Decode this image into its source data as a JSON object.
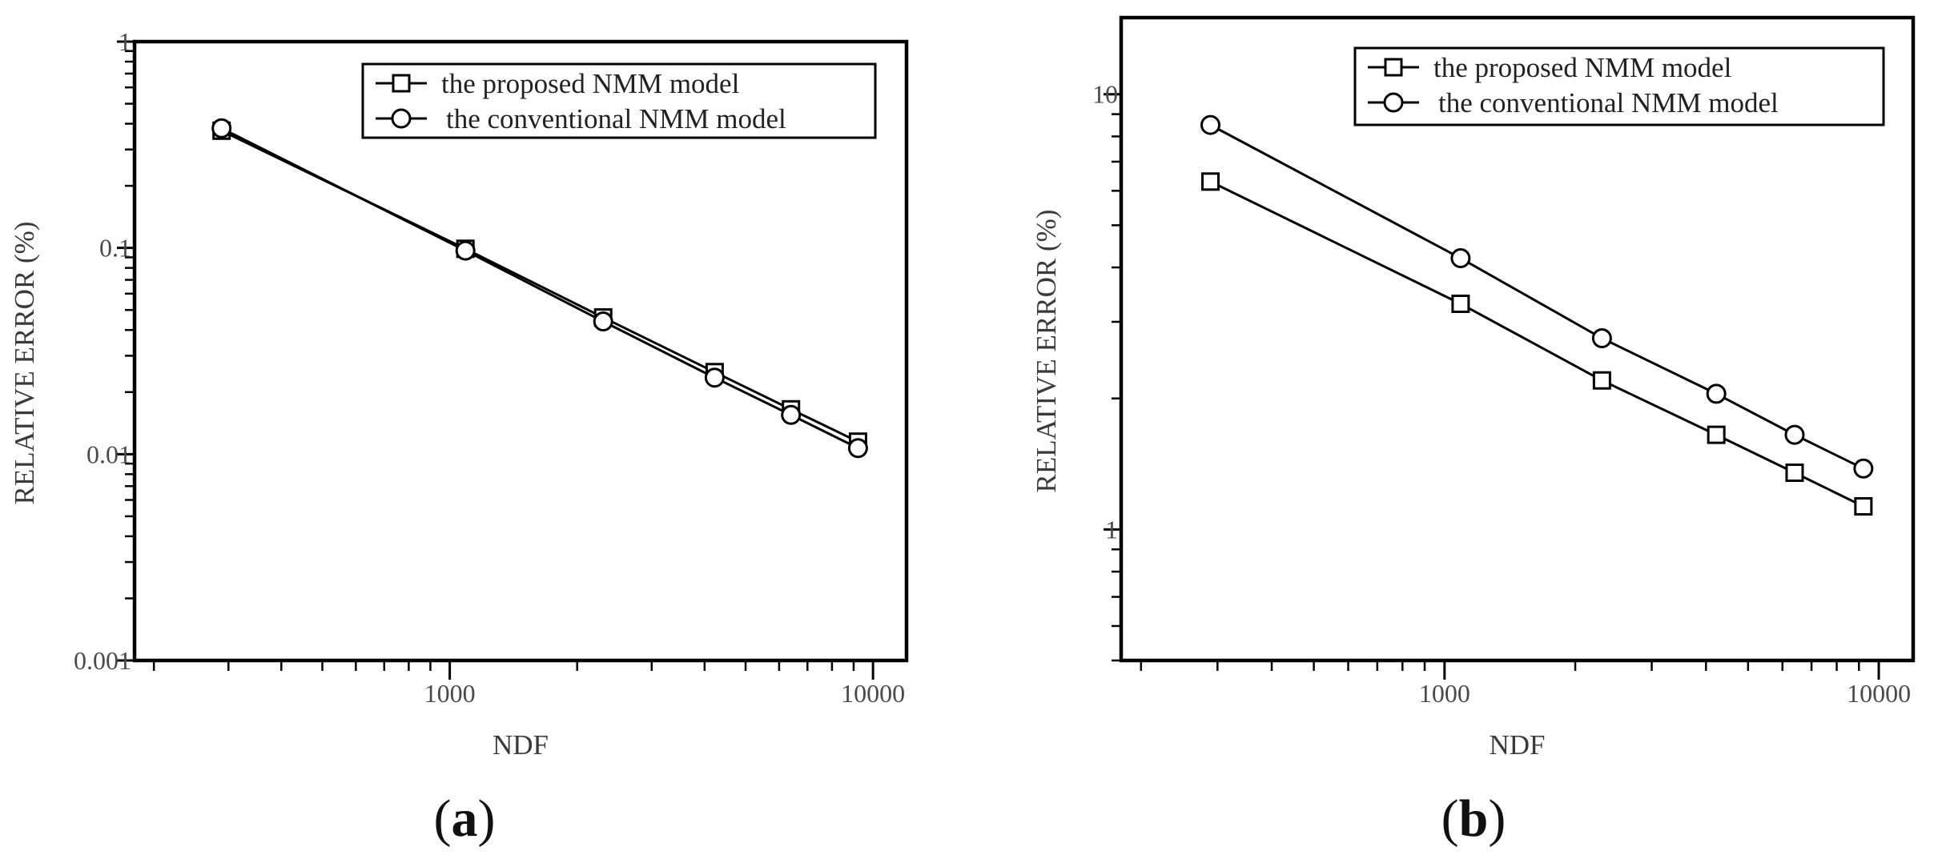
{
  "chart_data": [
    {
      "type": "line",
      "panel": "(a)",
      "xlabel": "NDF",
      "ylabel": "RELATIVE ERROR (%)",
      "xscale": "log",
      "yscale": "log",
      "xlim": [
        180,
        12000
      ],
      "ylim": [
        0.001,
        1
      ],
      "xticks": [
        "1000",
        "10000"
      ],
      "yticks": [
        "0.001",
        "0.01",
        "0.1",
        "1"
      ],
      "grid": false,
      "legend_position": "top-right",
      "series": [
        {
          "name": "the proposed NMM model",
          "marker": "square",
          "x": [
            289,
            1089,
            2304,
            4225,
            6400,
            9216
          ],
          "y": [
            0.37,
            0.099,
            0.046,
            0.025,
            0.0165,
            0.0115
          ]
        },
        {
          "name": "the conventional NMM model",
          "marker": "circle",
          "x": [
            289,
            1089,
            2304,
            4225,
            6400,
            9216
          ],
          "y": [
            0.38,
            0.097,
            0.044,
            0.0235,
            0.0155,
            0.0107
          ]
        }
      ]
    },
    {
      "type": "line",
      "panel": "(b)",
      "xlabel": "NDF",
      "ylabel": "RELATIVE ERROR (%)",
      "xscale": "log",
      "yscale": "log",
      "xlim": [
        180,
        12000
      ],
      "ylim": [
        0.5,
        15
      ],
      "xticks": [
        "1000",
        "10000"
      ],
      "yticks": [
        "1",
        "10"
      ],
      "grid": false,
      "legend_position": "top-right",
      "series": [
        {
          "name": "the proposed NMM model",
          "marker": "square",
          "x": [
            289,
            1089,
            2304,
            4225,
            6400,
            9216
          ],
          "y": [
            6.3,
            3.3,
            2.2,
            1.65,
            1.35,
            1.13
          ]
        },
        {
          "name": "the conventional NMM model",
          "marker": "circle",
          "x": [
            289,
            1089,
            2304,
            4225,
            6400,
            9216
          ],
          "y": [
            8.5,
            4.2,
            2.75,
            2.05,
            1.65,
            1.38
          ]
        }
      ]
    }
  ],
  "panel_labels": [
    "a",
    "b"
  ]
}
